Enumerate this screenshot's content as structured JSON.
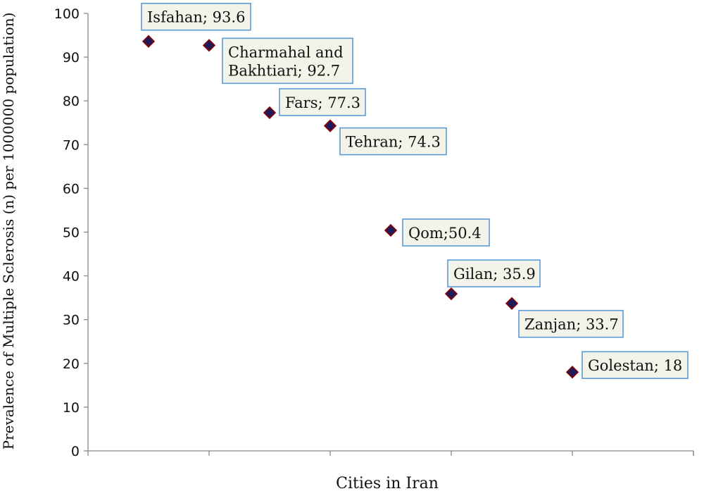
{
  "chart_data": {
    "type": "scatter",
    "title": "",
    "xlabel": "Cities in Iran",
    "ylabel": "Prevalence of Multiple Sclerosis (n) per 1000000 population)",
    "ylim": [
      0,
      100
    ],
    "yticks": [
      0,
      10,
      20,
      30,
      40,
      50,
      60,
      70,
      80,
      90,
      100
    ],
    "grid": false,
    "legend": "none",
    "marker_color": "#1f1a5a",
    "marker_outline": "#8b0000",
    "callout_fill": "#f3f3e9",
    "callout_border": "#5b9bd5",
    "points": [
      {
        "x": 1,
        "y": 93.6,
        "label_lines": [
          "Isfahan;  93.6"
        ]
      },
      {
        "x": 2,
        "y": 92.7,
        "label_lines": [
          "Charmahal and",
          "Bakhtiari; 92.7"
        ]
      },
      {
        "x": 3,
        "y": 77.3,
        "label_lines": [
          "Fars; 77.3"
        ]
      },
      {
        "x": 4,
        "y": 74.3,
        "label_lines": [
          "Tehran; 74.3"
        ]
      },
      {
        "x": 5,
        "y": 50.4,
        "label_lines": [
          "Qom;50.4"
        ]
      },
      {
        "x": 6,
        "y": 35.9,
        "label_lines": [
          "Gilan; 35.9"
        ]
      },
      {
        "x": 7,
        "y": 33.7,
        "label_lines": [
          "Zanjan; 33.7"
        ]
      },
      {
        "x": 8,
        "y": 18,
        "label_lines": [
          "Golestan; 18"
        ]
      }
    ]
  }
}
